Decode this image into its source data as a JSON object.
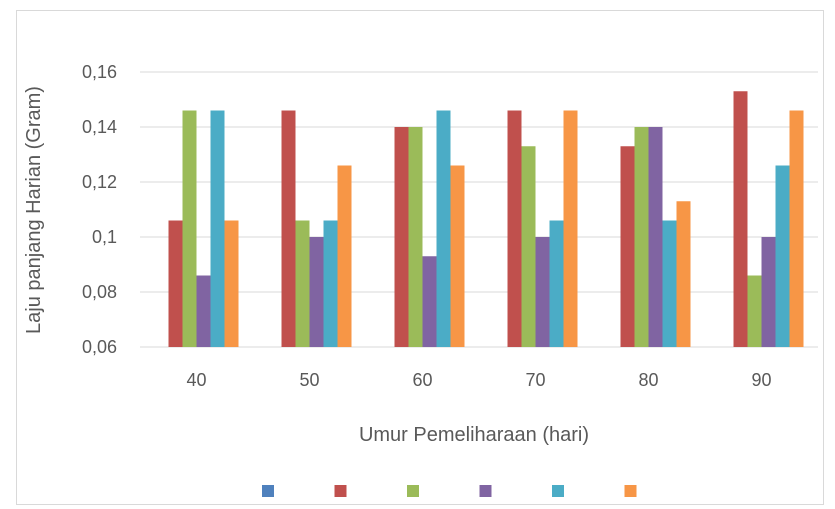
{
  "chart_data": {
    "type": "bar",
    "title": "",
    "xlabel": "Umur Pemeliharaan (hari)",
    "ylabel": "Laju panjang Harian (Gram)",
    "categories": [
      "40",
      "50",
      "60",
      "70",
      "80",
      "90"
    ],
    "yticks": [
      "0,06",
      "0,08",
      "0,1",
      "0,12",
      "0,14",
      "0,16"
    ],
    "ylim": [
      0.06,
      0.16
    ],
    "grid": true,
    "legend_position": "bottom",
    "series": [
      {
        "color": "#4f81bd",
        "values": [
          0.06,
          0.06,
          0.06,
          0.06,
          0.06,
          0.06
        ]
      },
      {
        "color": "#c0504d",
        "values": [
          0.106,
          0.146,
          0.14,
          0.146,
          0.133,
          0.153
        ]
      },
      {
        "color": "#9bbb59",
        "values": [
          0.146,
          0.106,
          0.14,
          0.133,
          0.14,
          0.086
        ]
      },
      {
        "color": "#8064a2",
        "values": [
          0.086,
          0.1,
          0.093,
          0.1,
          0.14,
          0.1
        ]
      },
      {
        "color": "#4bacc6",
        "values": [
          0.146,
          0.106,
          0.146,
          0.106,
          0.106,
          0.126
        ]
      },
      {
        "color": "#f79646",
        "values": [
          0.106,
          0.126,
          0.126,
          0.146,
          0.113,
          0.146
        ]
      }
    ]
  }
}
